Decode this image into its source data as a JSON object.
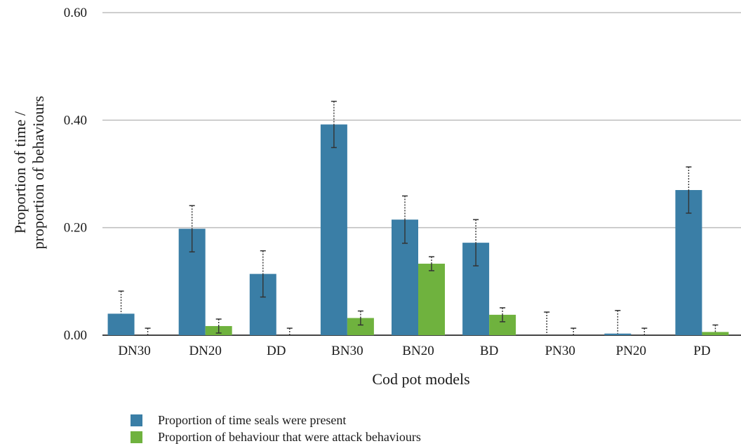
{
  "chart_data": {
    "type": "bar",
    "xlabel": "Cod pot models",
    "ylabel_lines": [
      "Proportion of time /",
      "proportion of behaviours"
    ],
    "ylim": [
      0,
      0.6
    ],
    "yticks": [
      "0.00",
      "0.20",
      "0.40",
      "0.60"
    ],
    "ytick_values": [
      0,
      0.2,
      0.4,
      0.6
    ],
    "grid": true,
    "categories": [
      "DN30",
      "DN20",
      "DD",
      "BN30",
      "BN20",
      "BD",
      "PN30",
      "PN20",
      "PD"
    ],
    "series": [
      {
        "name": "Proportion of time seals were present",
        "color": "#3a7ea6",
        "values": [
          0.04,
          0.198,
          0.114,
          0.392,
          0.215,
          0.172,
          0.0,
          0.003,
          0.27
        ],
        "error": [
          0.042,
          0.043,
          0.043,
          0.043,
          0.044,
          0.043,
          0.043,
          0.043,
          0.043
        ]
      },
      {
        "name": "Proportion of behaviour that were attack behaviours",
        "color": "#6fb23e",
        "values": [
          0.0,
          0.017,
          0.0,
          0.032,
          0.133,
          0.038,
          0.0,
          0.0,
          0.006
        ],
        "error": [
          0.013,
          0.013,
          0.013,
          0.013,
          0.013,
          0.013,
          0.013,
          0.013,
          0.013
        ]
      }
    ],
    "legend_position": "bottom"
  }
}
